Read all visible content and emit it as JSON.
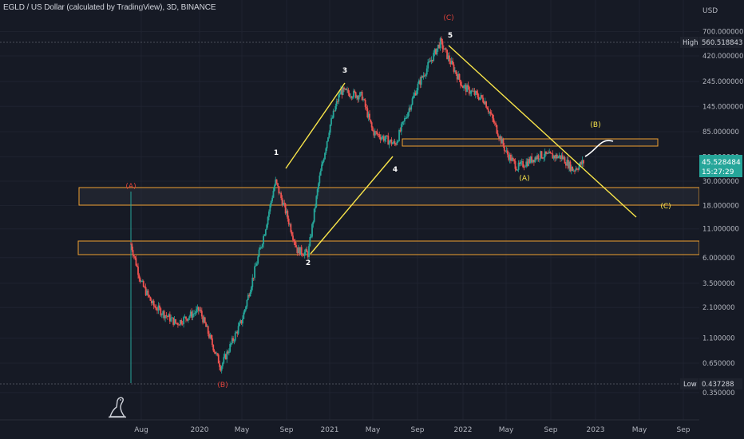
{
  "header": {
    "title": "EGLD / US Dollar (calculated by TradingView), 3D, BINANCE"
  },
  "price_scale": {
    "currency": "USD",
    "labels": [
      "700.000000",
      "420.000000",
      "245.000000",
      "145.000000",
      "85.000000",
      "50.000000",
      "30.000000",
      "18.000000",
      "11.000000",
      "6.000000",
      "3.500000",
      "2.100000",
      "1.100000",
      "0.650000",
      "0.350000"
    ],
    "high_label": "High",
    "high_value": "560.518843",
    "low_label": "Low",
    "low_value": "0.437288",
    "last_price": "45.528484",
    "countdown": "15:27:29"
  },
  "time_scale": {
    "labels": [
      "Aug",
      "2020",
      "May",
      "Sep",
      "2021",
      "May",
      "Sep",
      "2022",
      "May",
      "Sep",
      "2023",
      "May",
      "Sep"
    ]
  },
  "annotations": {
    "w1": "1",
    "w2": "2",
    "w3": "3",
    "w4": "4",
    "w5": "5",
    "A_red": "(A)",
    "B_red": "(B)",
    "C_red": "(C)",
    "A_yellow": "(A)",
    "B_yellow": "(B)",
    "C_yellow": "(C)"
  },
  "colors": {
    "background": "#161a25",
    "up": "#26a69a",
    "down": "#ef5350",
    "trendline": "#f9e54a",
    "zone_border": "#f0a030",
    "red_label": "#e0423a",
    "last_price_box": "#26a69a",
    "high_low_box": "#1e222d",
    "text": "#d1d4dc"
  },
  "chart_data": {
    "type": "candlestick",
    "title": "EGLD / US Dollar (calculated by TradingView), 3D, BINANCE",
    "y_scale": "log",
    "y_ticks": [
      700,
      420,
      245,
      145,
      85,
      50,
      30,
      18,
      11,
      6,
      3.5,
      2.1,
      1.1,
      0.65,
      0.35
    ],
    "x_ticks": [
      "Aug",
      "2020",
      "May",
      "Sep",
      "2021",
      "May",
      "Sep",
      "2022",
      "May",
      "Sep",
      "2023",
      "May",
      "Sep"
    ],
    "high": 560.518843,
    "low": 0.437288,
    "last": 45.528484,
    "price_path": [
      {
        "t": "2019-07",
        "p": 8
      },
      {
        "t": "2019-08",
        "p": 3.5
      },
      {
        "t": "2019-09",
        "p": 2.2
      },
      {
        "t": "2019-11",
        "p": 1.5
      },
      {
        "t": "2020-01",
        "p": 2.0
      },
      {
        "t": "2020-03",
        "p": 0.6
      },
      {
        "t": "2020-05",
        "p": 1.6
      },
      {
        "t": "2020-07",
        "p": 10
      },
      {
        "t": "2020-08",
        "p": 30
      },
      {
        "t": "2020-09",
        "p": 15
      },
      {
        "t": "2020-10",
        "p": 7
      },
      {
        "t": "2020-11",
        "p": 6.5
      },
      {
        "t": "2020-12",
        "p": 30
      },
      {
        "t": "2021-01",
        "p": 95
      },
      {
        "t": "2021-02",
        "p": 200
      },
      {
        "t": "2021-04",
        "p": 180
      },
      {
        "t": "2021-05",
        "p": 85
      },
      {
        "t": "2021-07",
        "p": 65
      },
      {
        "t": "2021-09",
        "p": 220
      },
      {
        "t": "2021-11",
        "p": 560
      },
      {
        "t": "2022-01",
        "p": 220
      },
      {
        "t": "2022-03",
        "p": 165
      },
      {
        "t": "2022-05",
        "p": 55
      },
      {
        "t": "2022-06",
        "p": 40
      },
      {
        "t": "2022-08",
        "p": 52
      },
      {
        "t": "2022-10",
        "p": 50
      },
      {
        "t": "2022-11",
        "p": 38
      },
      {
        "t": "2022-12",
        "p": 45.5
      }
    ],
    "wave_labels": [
      {
        "label": "1",
        "p": 100
      },
      {
        "label": "2",
        "p": 6.5
      },
      {
        "label": "3",
        "p": 280
      },
      {
        "label": "4",
        "p": 50
      },
      {
        "label": "5",
        "p": 620
      },
      {
        "label": "(A)",
        "p": 30
      },
      {
        "label": "(B)",
        "p": 100
      },
      {
        "label": "(C)",
        "p": 18
      }
    ],
    "zones": [
      {
        "from": 18,
        "to": 30
      },
      {
        "from": 6.5,
        "to": 8.5
      },
      {
        "from": 64,
        "to": 76
      }
    ]
  }
}
